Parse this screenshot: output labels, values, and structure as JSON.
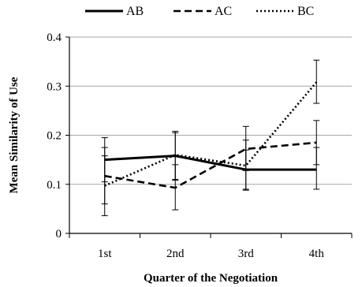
{
  "chart_data": {
    "type": "line",
    "title": "",
    "xlabel": "Quarter of the Negotiation",
    "ylabel": "Mean Similarity of Use",
    "categories": [
      "1st",
      "2nd",
      "3rd",
      "4th"
    ],
    "ylim": [
      0,
      0.4
    ],
    "yticks": [
      "0",
      "0.1",
      "0.2",
      "0.3",
      "0.4"
    ],
    "grid": true,
    "legend_position": "top",
    "series": [
      {
        "name": "AB",
        "style": "solid",
        "values": [
          0.15,
          0.158,
          0.13,
          0.13
        ],
        "err_low": [
          0.105,
          0.108,
          0.09,
          0.09
        ],
        "err_high": [
          0.195,
          0.208,
          0.17,
          0.175
        ]
      },
      {
        "name": "AC",
        "style": "dashed",
        "values": [
          0.117,
          0.093,
          0.172,
          0.185
        ],
        "err_low": [
          0.06,
          0.048,
          0.128,
          0.14
        ],
        "err_high": [
          0.175,
          0.14,
          0.218,
          0.23
        ]
      },
      {
        "name": "BC",
        "style": "dotted",
        "values": [
          0.097,
          0.16,
          0.138,
          0.308
        ],
        "err_low": [
          0.036,
          0.11,
          0.088,
          0.265
        ],
        "err_high": [
          0.158,
          0.205,
          0.19,
          0.353
        ]
      }
    ]
  }
}
